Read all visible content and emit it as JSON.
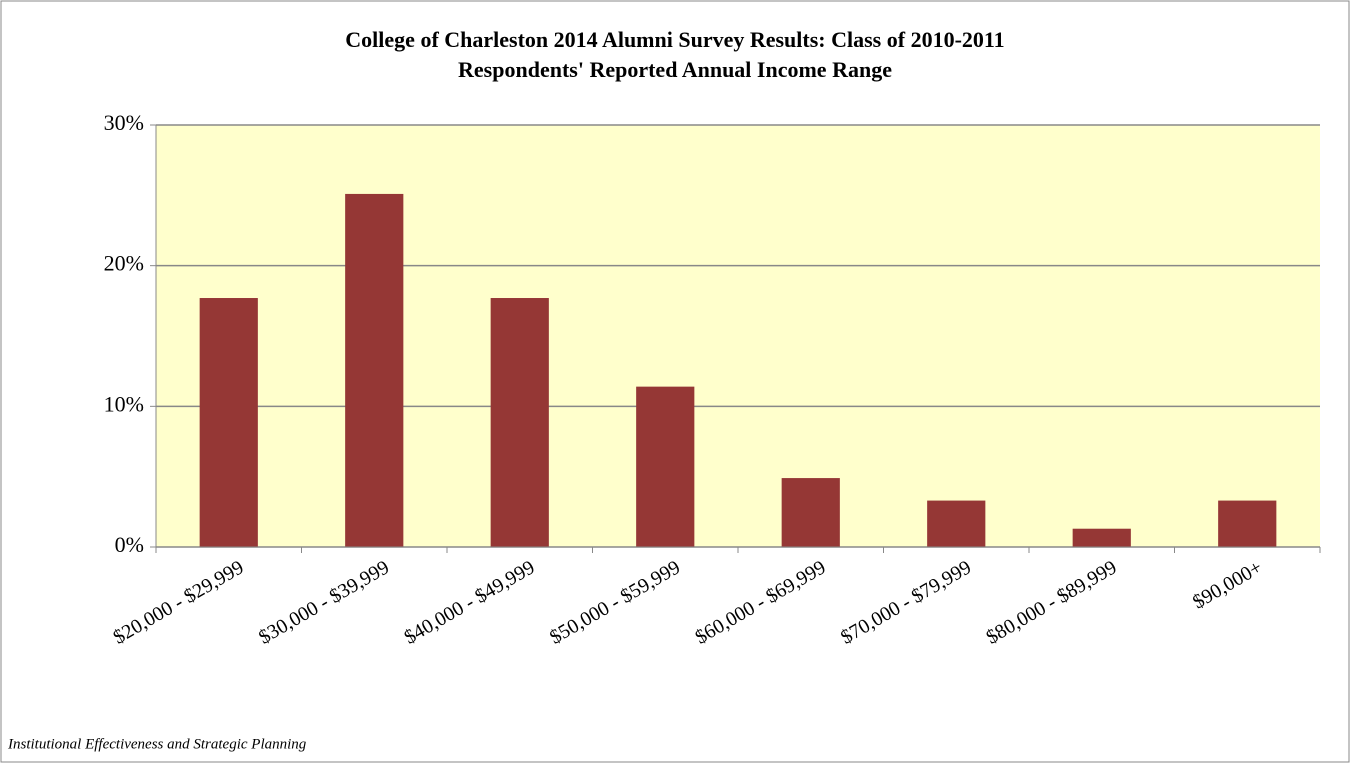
{
  "chart_data": {
    "type": "bar",
    "title": "College of Charleston 2014 Alumni Survey Results: Class of 2010-2011",
    "subtitle": "Respondents' Reported Annual Income Range",
    "categories": [
      "$20,000 - $29,999",
      "$30,000 - $39,999",
      "$40,000 - $49,999",
      "$50,000 - $59,999",
      "$60,000 - $69,999",
      "$70,000 - $79,999",
      "$80,000 - $89,999",
      "$90,000+"
    ],
    "values": [
      17.7,
      25.1,
      17.7,
      11.4,
      4.9,
      3.3,
      1.3,
      3.3
    ],
    "color": "#953735",
    "plot_background": "#ffffcc",
    "ylim": [
      0,
      30
    ],
    "yticks": [
      {
        "value": 0,
        "label": "0%"
      },
      {
        "value": 10,
        "label": "10%"
      },
      {
        "value": 20,
        "label": "20%"
      },
      {
        "value": 30,
        "label": "30%"
      }
    ],
    "grid": true,
    "footer": "Institutional Effectiveness and Strategic Planning"
  }
}
